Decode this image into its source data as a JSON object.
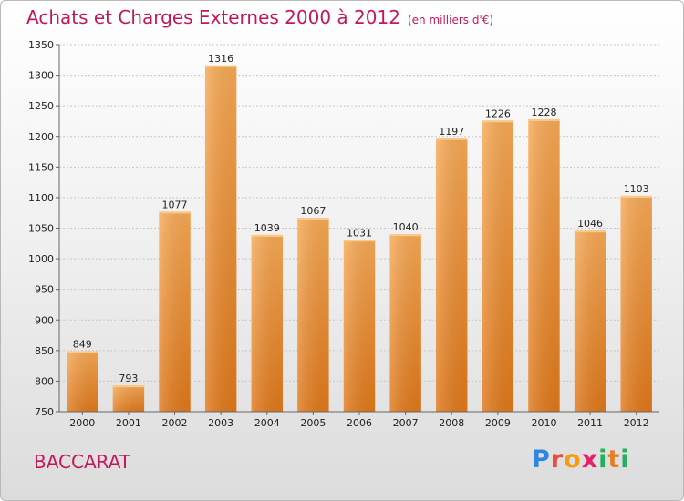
{
  "header": {
    "title": "Achats et Charges Externes 2000 à 2012",
    "subtitle": "(en milliers d'€)"
  },
  "footer": {
    "commune": "BACCARAT",
    "logo": {
      "text": "Proxiti",
      "letters": [
        {
          "ch": "P",
          "color": "#2e86de"
        },
        {
          "ch": "r",
          "color": "#e74c3c"
        },
        {
          "ch": "o",
          "color": "#f39c12"
        },
        {
          "ch": "x",
          "color": "#e91e63"
        },
        {
          "ch": "i",
          "color": "#27ae60"
        },
        {
          "ch": "t",
          "color": "#e67e22"
        },
        {
          "ch": "i",
          "color": "#27ae60"
        }
      ]
    }
  },
  "chart_data": {
    "type": "bar",
    "title": "Achats et Charges Externes 2000 à 2012",
    "subtitle": "(en milliers d'€)",
    "categories": [
      "2000",
      "2001",
      "2002",
      "2003",
      "2004",
      "2005",
      "2006",
      "2007",
      "2008",
      "2009",
      "2010",
      "2011",
      "2012"
    ],
    "values": [
      849,
      793,
      1077,
      1316,
      1039,
      1067,
      1031,
      1040,
      1197,
      1226,
      1228,
      1046,
      1103
    ],
    "ylim": [
      750,
      1350
    ],
    "yticks": [
      750,
      800,
      850,
      900,
      950,
      1000,
      1050,
      1100,
      1150,
      1200,
      1250,
      1300,
      1350
    ],
    "grid": true,
    "bar_color": "#f0912e",
    "xlabel": "",
    "ylabel": ""
  }
}
